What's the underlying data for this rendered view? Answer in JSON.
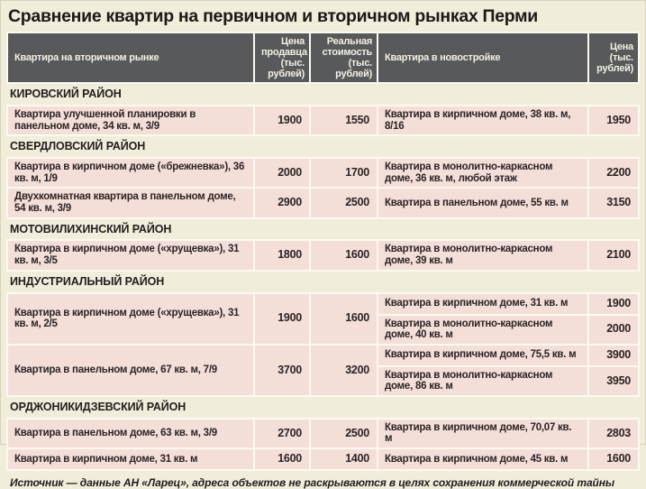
{
  "chart_data": {
    "type": "table",
    "title": "Сравнение квартир на первичном и вторичном рынках Перми",
    "columns": [
      "Квартира на вторичном рынке",
      "Цена\nпродавца\n(тыс.\nрублей)",
      "Реальная\nстоимость\n(тыс.\nрублей)",
      "Квартира в новостройке",
      "Цена\n(тыс.\nрублей)"
    ],
    "sections": [
      {
        "district": "КИРОВСКИЙ РАЙОН",
        "rows": [
          {
            "secondary": "Квартира улучшенной планировки в панельном доме, 34 кв. м, 3/9",
            "seller_price": 1900,
            "real_value": 1550,
            "newbuild": [
              {
                "desc": "Квартира в кирпичном доме, 38 кв. м, 8/16",
                "price": 1950
              }
            ]
          }
        ]
      },
      {
        "district": "СВЕРДЛОВСКИЙ РАЙОН",
        "rows": [
          {
            "secondary": "Квартира в кирпичном доме («брежневка»), 36 кв. м, 1/9",
            "seller_price": 2000,
            "real_value": 1700,
            "newbuild": [
              {
                "desc": "Квартира в монолитно-каркасном доме, 36 кв. м, любой этаж",
                "price": 2200
              }
            ]
          },
          {
            "secondary": "Двухкомнатная квартира в панельном доме, 54 кв. м, 3/9",
            "seller_price": 2900,
            "real_value": 2500,
            "newbuild": [
              {
                "desc": "Квартира в панельном доме, 55 кв. м",
                "price": 3150
              }
            ]
          }
        ]
      },
      {
        "district": "МОТОВИЛИХИНСКИЙ РАЙОН",
        "rows": [
          {
            "secondary": "Квартира в кирпичном доме («хрущевка»), 31 кв. м, 3/5",
            "seller_price": 1800,
            "real_value": 1600,
            "newbuild": [
              {
                "desc": "Квартира в монолитно-каркасном доме, 39 кв. м",
                "price": 2100
              }
            ]
          }
        ]
      },
      {
        "district": "ИНДУСТРИАЛЬНЫЙ РАЙОН",
        "rows": [
          {
            "secondary": "Квартира в кирпичном доме («хрущевка»), 31 кв. м, 2/5",
            "seller_price": 1900,
            "real_value": 1600,
            "newbuild": [
              {
                "desc": "Квартира в кирпичном доме, 31 кв. м",
                "price": 1900
              },
              {
                "desc": "Квартира в монолитно-каркасном доме, 40 кв. м",
                "price": 2000
              }
            ]
          },
          {
            "secondary": "Квартира в панельном доме, 67 кв. м, 7/9",
            "seller_price": 3700,
            "real_value": 3200,
            "newbuild": [
              {
                "desc": "Квартира в кирпичном доме, 75,5 кв. м",
                "price": 3900
              },
              {
                "desc": "Квартира в монолитно-каркасном доме, 86 кв. м",
                "price": 3950
              }
            ]
          }
        ]
      },
      {
        "district": "ОРДЖОНИКИДЗЕВСКИЙ РАЙОН",
        "rows": [
          {
            "secondary": "Квартира в панельном доме, 63 кв. м, 3/9",
            "seller_price": 2700,
            "real_value": 2500,
            "newbuild": [
              {
                "desc": "Квартира в кирпичном доме, 70,07 кв. м",
                "price": 2803
              }
            ]
          },
          {
            "secondary": "Квартира в кирпичном доме, 31 кв. м",
            "seller_price": 1600,
            "real_value": 1400,
            "newbuild": [
              {
                "desc": "Квартира в кирпичном доме, 45 кв. м",
                "price": 1600
              }
            ]
          }
        ]
      }
    ],
    "source_note": "Источник — данные АН «Ларец», адреса объектов не раскрываются в целях сохранения коммерческой тайны"
  },
  "colors": {
    "page_background": "#f0edda",
    "header_background": "#58595b",
    "header_text": "#f3f0e2",
    "row_background": "#f4ded8",
    "cell_divider": "#fcfaf1",
    "text_dark": "#221d1e"
  }
}
